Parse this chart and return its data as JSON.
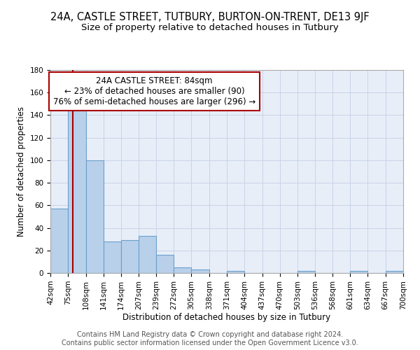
{
  "title_line1": "24A, CASTLE STREET, TUTBURY, BURTON-ON-TRENT, DE13 9JF",
  "title_line2": "Size of property relative to detached houses in Tutbury",
  "xlabel": "Distribution of detached houses by size in Tutbury",
  "ylabel": "Number of detached properties",
  "bin_edges": [
    42,
    75,
    108,
    141,
    174,
    207,
    239,
    272,
    305,
    338,
    371,
    404,
    437,
    470,
    503,
    536,
    568,
    601,
    634,
    667,
    700
  ],
  "bin_heights": [
    57,
    145,
    100,
    28,
    29,
    33,
    16,
    5,
    3,
    0,
    2,
    0,
    0,
    0,
    2,
    0,
    0,
    2,
    0,
    2
  ],
  "bar_color": "#b8d0ea",
  "bar_edge_color": "#6ca0cc",
  "bar_linewidth": 0.8,
  "vline_x": 84,
  "vline_color": "#aa0000",
  "annotation_text": "24A CASTLE STREET: 84sqm\n← 23% of detached houses are smaller (90)\n76% of semi-detached houses are larger (296) →",
  "ylim": [
    0,
    180
  ],
  "yticks": [
    0,
    20,
    40,
    60,
    80,
    100,
    120,
    140,
    160,
    180
  ],
  "tick_labels": [
    "42sqm",
    "75sqm",
    "108sqm",
    "141sqm",
    "174sqm",
    "207sqm",
    "239sqm",
    "272sqm",
    "305sqm",
    "338sqm",
    "371sqm",
    "404sqm",
    "437sqm",
    "470sqm",
    "503sqm",
    "536sqm",
    "568sqm",
    "601sqm",
    "634sqm",
    "667sqm",
    "700sqm"
  ],
  "grid_color": "#c8d4e8",
  "bg_color": "#e8eef8",
  "footer_text": "Contains HM Land Registry data © Crown copyright and database right 2024.\nContains public sector information licensed under the Open Government Licence v3.0.",
  "title_fontsize": 10.5,
  "subtitle_fontsize": 9.5,
  "axis_label_fontsize": 8.5,
  "tick_fontsize": 7.5,
  "annotation_fontsize": 8.5,
  "footer_fontsize": 7.0
}
